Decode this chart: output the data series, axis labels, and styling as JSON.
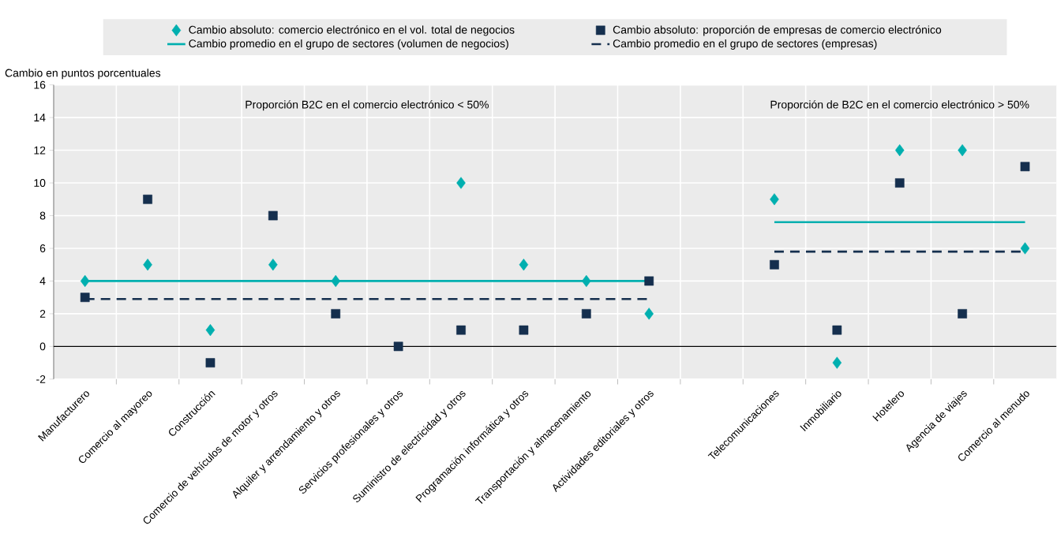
{
  "chart_data": {
    "type": "scatter",
    "ylabel": "Cambio en puntos porcentuales",
    "categories": [
      "Manufacturero",
      "Comercio al mayoreo",
      "Construcción",
      "Comercio de vehículos de motor y otros",
      "Alquiler y arrendamiento y otros",
      "Servicios profesionales y otros",
      "Suministro de electricidad y otros",
      "Programación informática y otros",
      "Transportación y almacenamiento",
      "Actividades editoriales y otros",
      null,
      "Telecomunicaciones",
      "Inmobiliario",
      "Hotelero",
      "Agencia de viajes",
      "Comercio al menudo"
    ],
    "series": [
      {
        "name": "Cambio absoluto: comercio electrónico en el vol. total de negocios",
        "marker": "diamond",
        "color": "#00afaf",
        "values": [
          4,
          5,
          1,
          5,
          4,
          null,
          10,
          5,
          4,
          2,
          null,
          9,
          -1,
          12,
          12,
          6
        ]
      },
      {
        "name": "Cambio absoluto: proporción de empresas de comercio electrónico",
        "marker": "square",
        "color": "#152f4e",
        "values": [
          3,
          9,
          -1,
          8,
          2,
          0,
          1,
          1,
          2,
          4,
          null,
          5,
          1,
          10,
          2,
          11
        ]
      },
      {
        "name": "Cambio promedio en el grupo de sectores (volumen de negocios)",
        "type": "line",
        "line_style": "solid",
        "color": "#00afaf",
        "values": [
          4,
          4,
          4,
          4,
          4,
          4,
          4,
          4,
          4,
          4,
          null,
          7.6,
          7.6,
          7.6,
          7.6,
          7.6
        ]
      },
      {
        "name": "Cambio promedio en el grupo de sectores (empresas)",
        "type": "line",
        "line_style": "dashed",
        "color": "#152f4e",
        "values": [
          2.9,
          2.9,
          2.9,
          2.9,
          2.9,
          2.9,
          2.9,
          2.9,
          2.9,
          2.9,
          null,
          5.8,
          5.8,
          5.8,
          5.8,
          5.8
        ]
      }
    ],
    "annotations": [
      "Proporción B2C en el comercio electrónico < 50%",
      "Proporción de B2C en el comercio electrónico > 50%"
    ],
    "ylim": [
      -2,
      16
    ],
    "yticks": [
      -2,
      0,
      2,
      4,
      6,
      8,
      10,
      12,
      14,
      16
    ],
    "grid": true,
    "legend": "top"
  }
}
